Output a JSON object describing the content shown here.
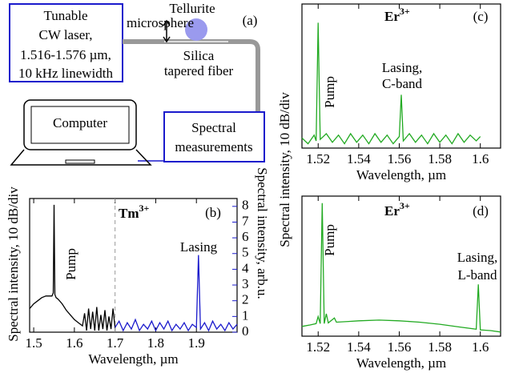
{
  "diagram": {
    "label": "(a)",
    "laser": [
      "Tunable",
      "CW laser,",
      "1.516-1.576 µm,",
      "10 kHz linewidth"
    ],
    "microsphere": [
      "Tellurite",
      "microsphere"
    ],
    "fiber": [
      "Silica",
      "tapered fiber"
    ],
    "computer": "Computer",
    "spectrometer": [
      "Spectral",
      "measurements"
    ]
  },
  "chart_data": [
    {
      "type": "line",
      "panel": "(b)",
      "ion": "Tm",
      "ion_charge": "3+",
      "xlabel": "Wavelength, µm",
      "ylabel": "Spectral intensity, 10 dB/div",
      "y2label": "Spectral intensity, arb.u.",
      "xlim": [
        1.49,
        2.0
      ],
      "xticks": [
        1.5,
        1.6,
        1.7,
        1.8,
        1.9
      ],
      "ylim": [
        0,
        8.5
      ],
      "y2lim": [
        0,
        8.5
      ],
      "y2ticks": [
        0,
        1,
        2,
        3,
        4,
        5,
        6,
        7,
        8
      ],
      "y2color": "#1a1acc",
      "boundary": 1.7,
      "annotations": [
        {
          "lines": [
            "Pump"
          ],
          "color": "#000000"
        },
        {
          "lines": [
            "Lasing"
          ],
          "color": "#1a1acc"
        }
      ],
      "series": [
        {
          "color": "#000000",
          "x": [
            1.49,
            1.5,
            1.51,
            1.52,
            1.53,
            1.54,
            1.545,
            1.548,
            1.55,
            1.552,
            1.555,
            1.56,
            1.57,
            1.58,
            1.59,
            1.6,
            1.61,
            1.62,
            1.625,
            1.63,
            1.635,
            1.64,
            1.645,
            1.65,
            1.655,
            1.66,
            1.665,
            1.67,
            1.675,
            1.68,
            1.685,
            1.69,
            1.695,
            1.7
          ],
          "values": [
            1.5,
            1.8,
            2.0,
            2.2,
            2.3,
            2.3,
            2.3,
            2.5,
            8.1,
            2.4,
            2.2,
            2.1,
            1.8,
            1.4,
            1.1,
            0.8,
            0.6,
            0.4,
            1.2,
            0.1,
            1.5,
            0.2,
            1.3,
            0.1,
            1.6,
            0.1,
            1.1,
            0.2,
            1.4,
            0.1,
            1.0,
            0.2,
            1.5,
            0.3
          ]
        },
        {
          "color": "#1a1acc",
          "axis": "y2",
          "x": [
            1.7,
            1.71,
            1.72,
            1.73,
            1.74,
            1.75,
            1.76,
            1.77,
            1.78,
            1.79,
            1.8,
            1.81,
            1.82,
            1.83,
            1.84,
            1.85,
            1.86,
            1.87,
            1.88,
            1.89,
            1.9,
            1.905,
            1.91,
            1.92,
            1.93,
            1.94,
            1.95,
            1.96,
            1.97,
            1.98,
            1.99,
            2.0
          ],
          "values": [
            0.3,
            0.7,
            0.1,
            0.6,
            0.2,
            0.8,
            0.1,
            0.5,
            0.2,
            0.7,
            0.1,
            0.6,
            0.2,
            0.7,
            0.1,
            0.5,
            0.2,
            0.6,
            0.1,
            0.5,
            0.3,
            4.9,
            0.2,
            0.6,
            0.1,
            0.7,
            0.2,
            0.5,
            0.1,
            0.6,
            0.2,
            0.5
          ]
        }
      ]
    },
    {
      "type": "line",
      "panel": "(c)",
      "ion": "Er",
      "ion_charge": "3+",
      "xlabel": "Wavelength, µm",
      "ylabel": "Spectral intensity, 10 dB/div",
      "xlim": [
        1.512,
        1.61
      ],
      "xticks": [
        1.52,
        1.54,
        1.56,
        1.58,
        1.6
      ],
      "ylim": [
        0,
        10
      ],
      "annotations": [
        {
          "lines": [
            "Pump"
          ],
          "color": "#000000"
        },
        {
          "lines": [
            "Lasing,",
            "C-band"
          ],
          "color": "#22aa22"
        }
      ],
      "series": [
        {
          "color": "#22aa22",
          "x": [
            1.512,
            1.515,
            1.518,
            1.519,
            1.52,
            1.521,
            1.524,
            1.527,
            1.53,
            1.533,
            1.536,
            1.539,
            1.542,
            1.545,
            1.548,
            1.551,
            1.554,
            1.557,
            1.56,
            1.561,
            1.562,
            1.565,
            1.568,
            1.571,
            1.574,
            1.577,
            1.58,
            1.583,
            1.586,
            1.589,
            1.592,
            1.595,
            1.598,
            1.6
          ],
          "values": [
            0.7,
            0.3,
            0.9,
            0.5,
            8.7,
            0.6,
            1.0,
            0.4,
            0.9,
            0.3,
            1.0,
            0.4,
            0.9,
            0.3,
            1.0,
            0.4,
            0.9,
            0.3,
            0.8,
            3.7,
            0.5,
            1.0,
            0.4,
            0.9,
            0.3,
            1.0,
            0.4,
            0.9,
            0.3,
            1.0,
            0.4,
            0.9,
            0.5,
            0.8
          ]
        }
      ]
    },
    {
      "type": "line",
      "panel": "(d)",
      "ion": "Er",
      "ion_charge": "3+",
      "xlabel": "Wavelength, µm",
      "xlim": [
        1.512,
        1.61
      ],
      "xticks": [
        1.52,
        1.54,
        1.56,
        1.58,
        1.6
      ],
      "ylim": [
        0,
        10
      ],
      "annotations": [
        {
          "lines": [
            "Pump"
          ],
          "color": "#000000"
        },
        {
          "lines": [
            "Lasing,",
            "L-band"
          ],
          "color": "#22aa22"
        }
      ],
      "series": [
        {
          "color": "#22aa22",
          "x": [
            1.512,
            1.516,
            1.519,
            1.52,
            1.521,
            1.522,
            1.523,
            1.524,
            1.525,
            1.528,
            1.529,
            1.535,
            1.54,
            1.55,
            1.56,
            1.57,
            1.58,
            1.59,
            1.598,
            1.599,
            1.6,
            1.605,
            1.61
          ],
          "values": [
            0.7,
            0.8,
            0.9,
            1.4,
            0.9,
            9.5,
            0.9,
            1.6,
            0.95,
            1.3,
            1.0,
            1.05,
            1.1,
            1.15,
            1.1,
            1.0,
            0.85,
            0.65,
            0.5,
            3.7,
            0.45,
            0.4,
            0.3
          ]
        }
      ]
    }
  ]
}
